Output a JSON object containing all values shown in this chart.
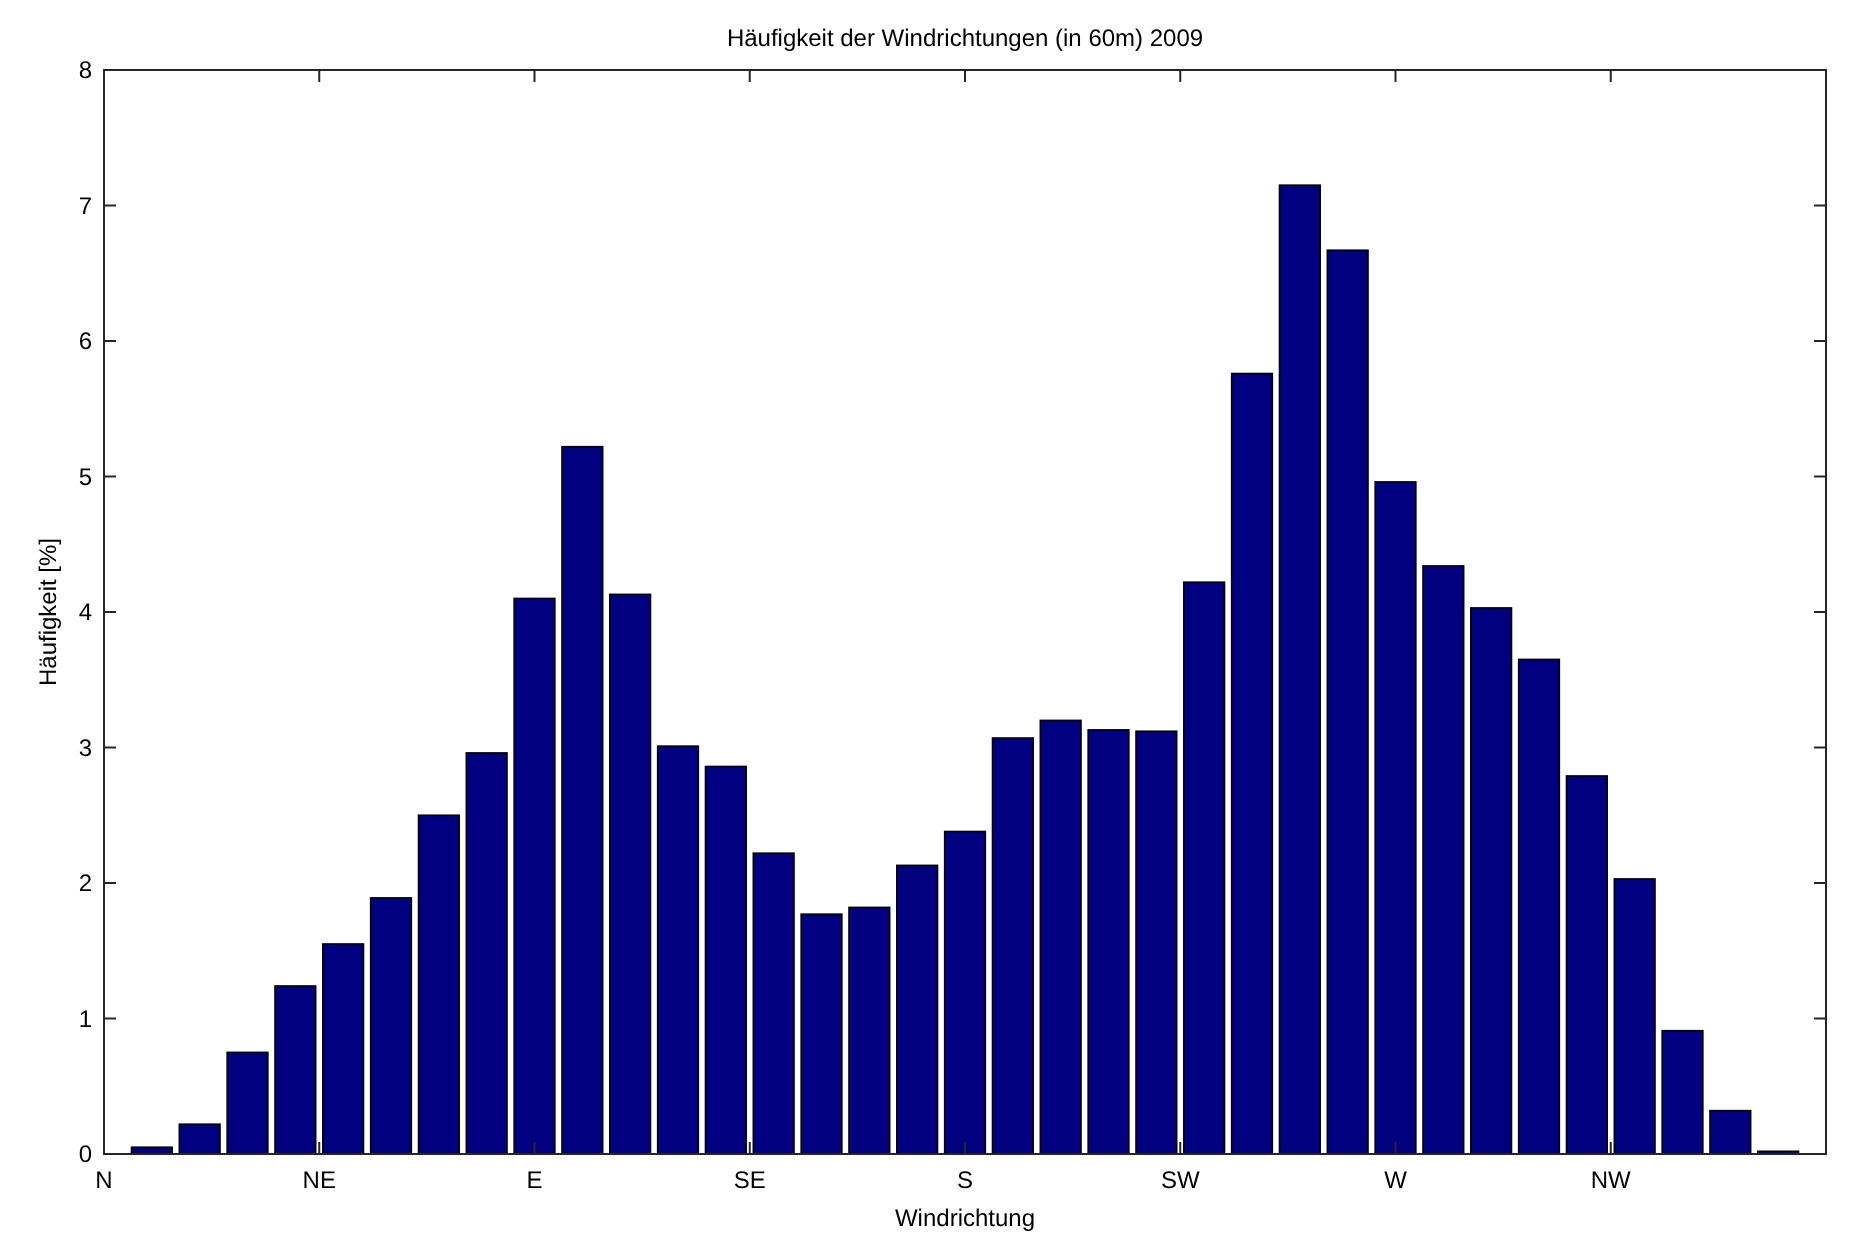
{
  "chart_data": {
    "type": "bar",
    "title": "Häufigkeit der Windrichtungen (in 60m) 2009",
    "xlabel": "Windrichtung",
    "ylabel": "Häufigkeit [%]",
    "categories": [
      "N",
      null,
      null,
      null,
      null,
      null,
      null,
      null,
      null,
      "NE",
      null,
      null,
      null,
      null,
      null,
      null,
      null,
      null,
      "E",
      null,
      null,
      null,
      null,
      null,
      null,
      null,
      null,
      "SE",
      null,
      null,
      null,
      null,
      null,
      null,
      null,
      null,
      "S",
      null,
      null,
      null,
      null,
      null,
      null,
      null,
      null,
      "SW",
      null,
      null,
      null,
      null,
      null,
      null,
      null,
      null,
      "W",
      null,
      null,
      null,
      null,
      null,
      null,
      null,
      null,
      "NW",
      null,
      null,
      null,
      null,
      null,
      null,
      null,
      null
    ],
    "values": [
      null,
      null,
      0.05,
      null,
      0.22,
      null,
      0.75,
      null,
      1.24,
      null,
      1.55,
      null,
      1.89,
      null,
      2.5,
      null,
      2.96,
      null,
      4.1,
      null,
      5.22,
      null,
      4.13,
      null,
      3.01,
      null,
      2.86,
      null,
      2.22,
      null,
      1.77,
      null,
      1.82,
      null,
      2.13,
      null,
      2.38,
      null,
      3.07,
      null,
      3.2,
      null,
      3.13,
      null,
      3.12,
      null,
      4.22,
      null,
      5.76,
      null,
      7.15,
      null,
      6.67,
      null,
      4.96,
      null,
      4.34,
      null,
      4.03,
      null,
      3.65,
      null,
      2.79,
      null,
      2.03,
      null,
      0.91,
      null,
      0.32,
      null,
      0.02,
      null
    ],
    "color": "#000080",
    "ylim": [
      0,
      8
    ],
    "yticks": [
      0,
      1,
      2,
      3,
      4,
      5,
      6,
      7,
      8
    ],
    "grid": false
  }
}
